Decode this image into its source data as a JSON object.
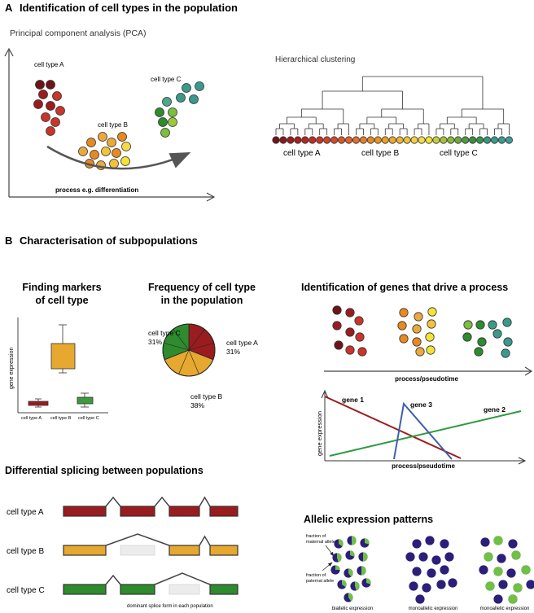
{
  "panel_a": {
    "letter": "A",
    "title": "Identification of cell types in the population",
    "pca": {
      "title": "Principal component analysis (PCA)",
      "label_a": "cell type A",
      "label_b": "cell type B",
      "label_c": "cell type C",
      "arrow_label": "process e.g. differentiation"
    },
    "clustering": {
      "title": "Hierarchical clustering",
      "labels": [
        "cell type A",
        "cell type B",
        "cell type C"
      ]
    }
  },
  "panel_b": {
    "letter": "B",
    "title": "Characterisation of subpopulations",
    "markers": {
      "title_line1": "Finding markers",
      "title_line2": "of cell type",
      "ylabel": "gene expression",
      "categories": [
        "cell type A",
        "cell type B",
        "cell type C"
      ]
    },
    "frequency": {
      "title_line1": "Frequency of cell type",
      "title_line2": "in the population",
      "slices": [
        {
          "label": "cell type A",
          "pct_label": "31%",
          "value": 31,
          "color": "#9b1c1f"
        },
        {
          "label": "cell type B",
          "pct_label": "38%",
          "value": 38,
          "color": "#e6a82e"
        },
        {
          "label": "cell type C",
          "pct_label": "31%",
          "value": 31,
          "color": "#2e8b2e"
        }
      ]
    },
    "drivers": {
      "title": "Identification of genes that drive a process",
      "axis_label": "process/pseudotime",
      "plot_xlabel": "process/pseudotime",
      "plot_ylabel": "gene expression",
      "gene1": "gene 1",
      "gene2": "gene 2",
      "gene3": "gene 3"
    },
    "splicing": {
      "title": "Differential splicing between populations",
      "rows": [
        "cell type A",
        "cell type B",
        "cell type C"
      ],
      "note": "dominant splice form in each population"
    },
    "allelic": {
      "title": "Allelic expression patterns",
      "maternal_label_1": "fraction of",
      "maternal_label_2": "maternal allele",
      "paternal_label_1": "fraction of",
      "paternal_label_2": "paternal allele",
      "groups": [
        "biallelic expression",
        "monoallelic expression",
        "monoallelic expression"
      ]
    }
  },
  "colors": {
    "red": "#9b1c1f",
    "orange": "#e8891f",
    "yellow": "#f2e335",
    "green": "#2e8b2e",
    "teal": "#3a9a8a",
    "navy": "#2b1f7a",
    "lightgreen": "#6fc045"
  }
}
